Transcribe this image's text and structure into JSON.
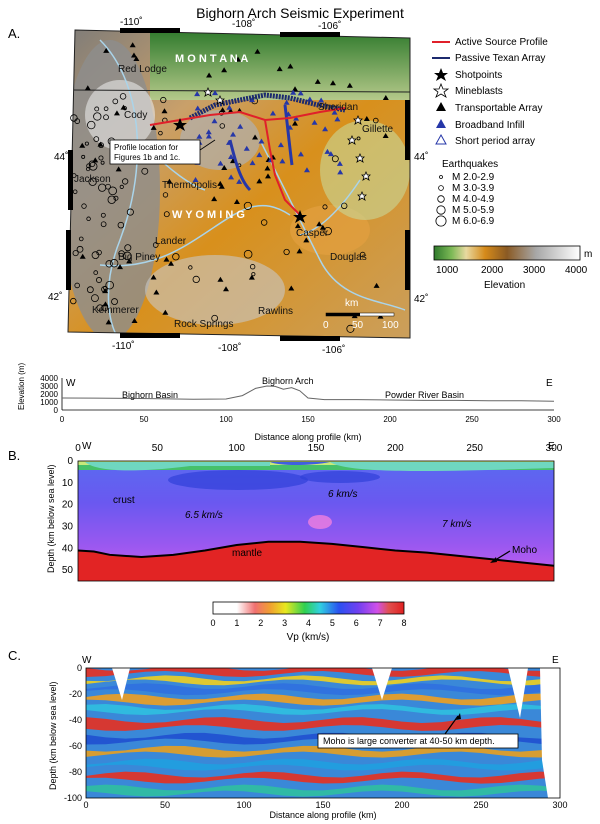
{
  "title": "Bighorn Arch Seismic Experiment",
  "colors": {
    "active": "#e0202a",
    "texan": "#1c2a6e",
    "broadband": "#2637a8",
    "moho": "#000000",
    "mantle": "#e22424"
  },
  "panelA": {
    "label": "A.",
    "lon_ticks": [
      "-110˚",
      "-108˚",
      "-106˚"
    ],
    "lat_ticks": [
      "44˚",
      "42˚"
    ],
    "state_montana": "M O N T A N A",
    "state_wyoming": "W Y O M I N G",
    "cities": [
      {
        "name": "Red Lodge"
      },
      {
        "name": "Cody"
      },
      {
        "name": "Sheridan"
      },
      {
        "name": "Gillette"
      },
      {
        "name": "Jackson"
      },
      {
        "name": "Thermopolis"
      },
      {
        "name": "Lander"
      },
      {
        "name": "Casper"
      },
      {
        "name": "Big Piney"
      },
      {
        "name": "Douglas"
      },
      {
        "name": "Kemmerer"
      },
      {
        "name": "Rock Springs"
      },
      {
        "name": "Rawlins"
      }
    ],
    "callout": [
      "Profile location for",
      "Figures 1b and 1c."
    ],
    "legend": {
      "active": "Active Source Profile",
      "texan": "Passive Texan Array",
      "shot": "Shotpoints",
      "mine": "Mineblasts",
      "ta": "Transportable Array",
      "bb": "Broadband Infill",
      "sp": "Short period array"
    },
    "eq_title": "Earthquakes",
    "eq_items": [
      "M 2.0-2.9",
      "M 3.0-3.9",
      "M 4.0-4.9",
      "M 5.0-5.9",
      "M 6.0-6.9"
    ],
    "elev_ticks": [
      "1000",
      "2000",
      "3000",
      "4000"
    ],
    "elev_unit": "m",
    "elev_label": "Elevation",
    "scale_unit": "km",
    "scale_ticks": [
      "0",
      "50",
      "100"
    ]
  },
  "chart_data": [
    {
      "type": "line",
      "ylabel": "Elevation (m)",
      "xlabel": "Distance along profile (km)",
      "xlim": [
        0,
        300
      ],
      "ylim": [
        0,
        4000
      ],
      "y_ticks": [
        "4000",
        "3000",
        "2000",
        "1000",
        "0"
      ],
      "x_ticks": [
        "0",
        "50",
        "100",
        "150",
        "200",
        "250",
        "300"
      ],
      "x_values": [
        0,
        20,
        40,
        60,
        80,
        100,
        110,
        118,
        125,
        130,
        135,
        140,
        145,
        150,
        160,
        180,
        200,
        220,
        240,
        260,
        280,
        300
      ],
      "elevation": [
        1500,
        1480,
        1450,
        1400,
        1350,
        1380,
        1800,
        2700,
        3000,
        2950,
        2600,
        2800,
        2400,
        1500,
        1300,
        1300,
        1250,
        1200,
        1200,
        1150,
        1150,
        1100
      ],
      "annotations": [
        "Bighorn Basin",
        "Bighorn Arch",
        "Powder River Basin"
      ],
      "west": "W",
      "east": "E"
    },
    {
      "type": "heatmap",
      "label": "B.",
      "ylabel": "Depth (km below sea level)",
      "xlim": [
        0,
        300
      ],
      "ylim": [
        0,
        55
      ],
      "y_ticks": [
        "0",
        "10",
        "20",
        "30",
        "40",
        "50"
      ],
      "x_ticks": [
        "0",
        "50",
        "100",
        "150",
        "200",
        "250",
        "300"
      ],
      "moho_x": [
        0,
        10,
        20,
        40,
        60,
        80,
        100,
        120,
        140,
        160,
        180,
        200,
        220,
        240,
        260,
        280,
        300
      ],
      "moho_depth": [
        41,
        41.5,
        43,
        44,
        43,
        41,
        38.5,
        37,
        37,
        38,
        39.5,
        41,
        42,
        43.5,
        45,
        46.5,
        48
      ],
      "labels": [
        "crust",
        "6.5 km/s",
        "6 km/s",
        "7 km/s",
        "mantle",
        "Moho"
      ],
      "west": "W",
      "east": "E",
      "colorbar_ticks": [
        "0",
        "1",
        "2",
        "3",
        "4",
        "5",
        "6",
        "7",
        "8"
      ],
      "colorbar_label": "Vp (km/s)"
    },
    {
      "type": "heatmap",
      "label": "C.",
      "ylabel": "Depth (km below sea level)",
      "xlabel": "Distance along profile (km)",
      "xlim": [
        0,
        300
      ],
      "ylim": [
        -100,
        0
      ],
      "y_ticks": [
        "0",
        "-20",
        "-40",
        "-60",
        "-80",
        "-100"
      ],
      "x_ticks": [
        "0",
        "50",
        "100",
        "150",
        "200",
        "250",
        "300"
      ],
      "annotation": "Moho is large converter at 40-50 km depth.",
      "west": "W",
      "east": "E"
    }
  ]
}
